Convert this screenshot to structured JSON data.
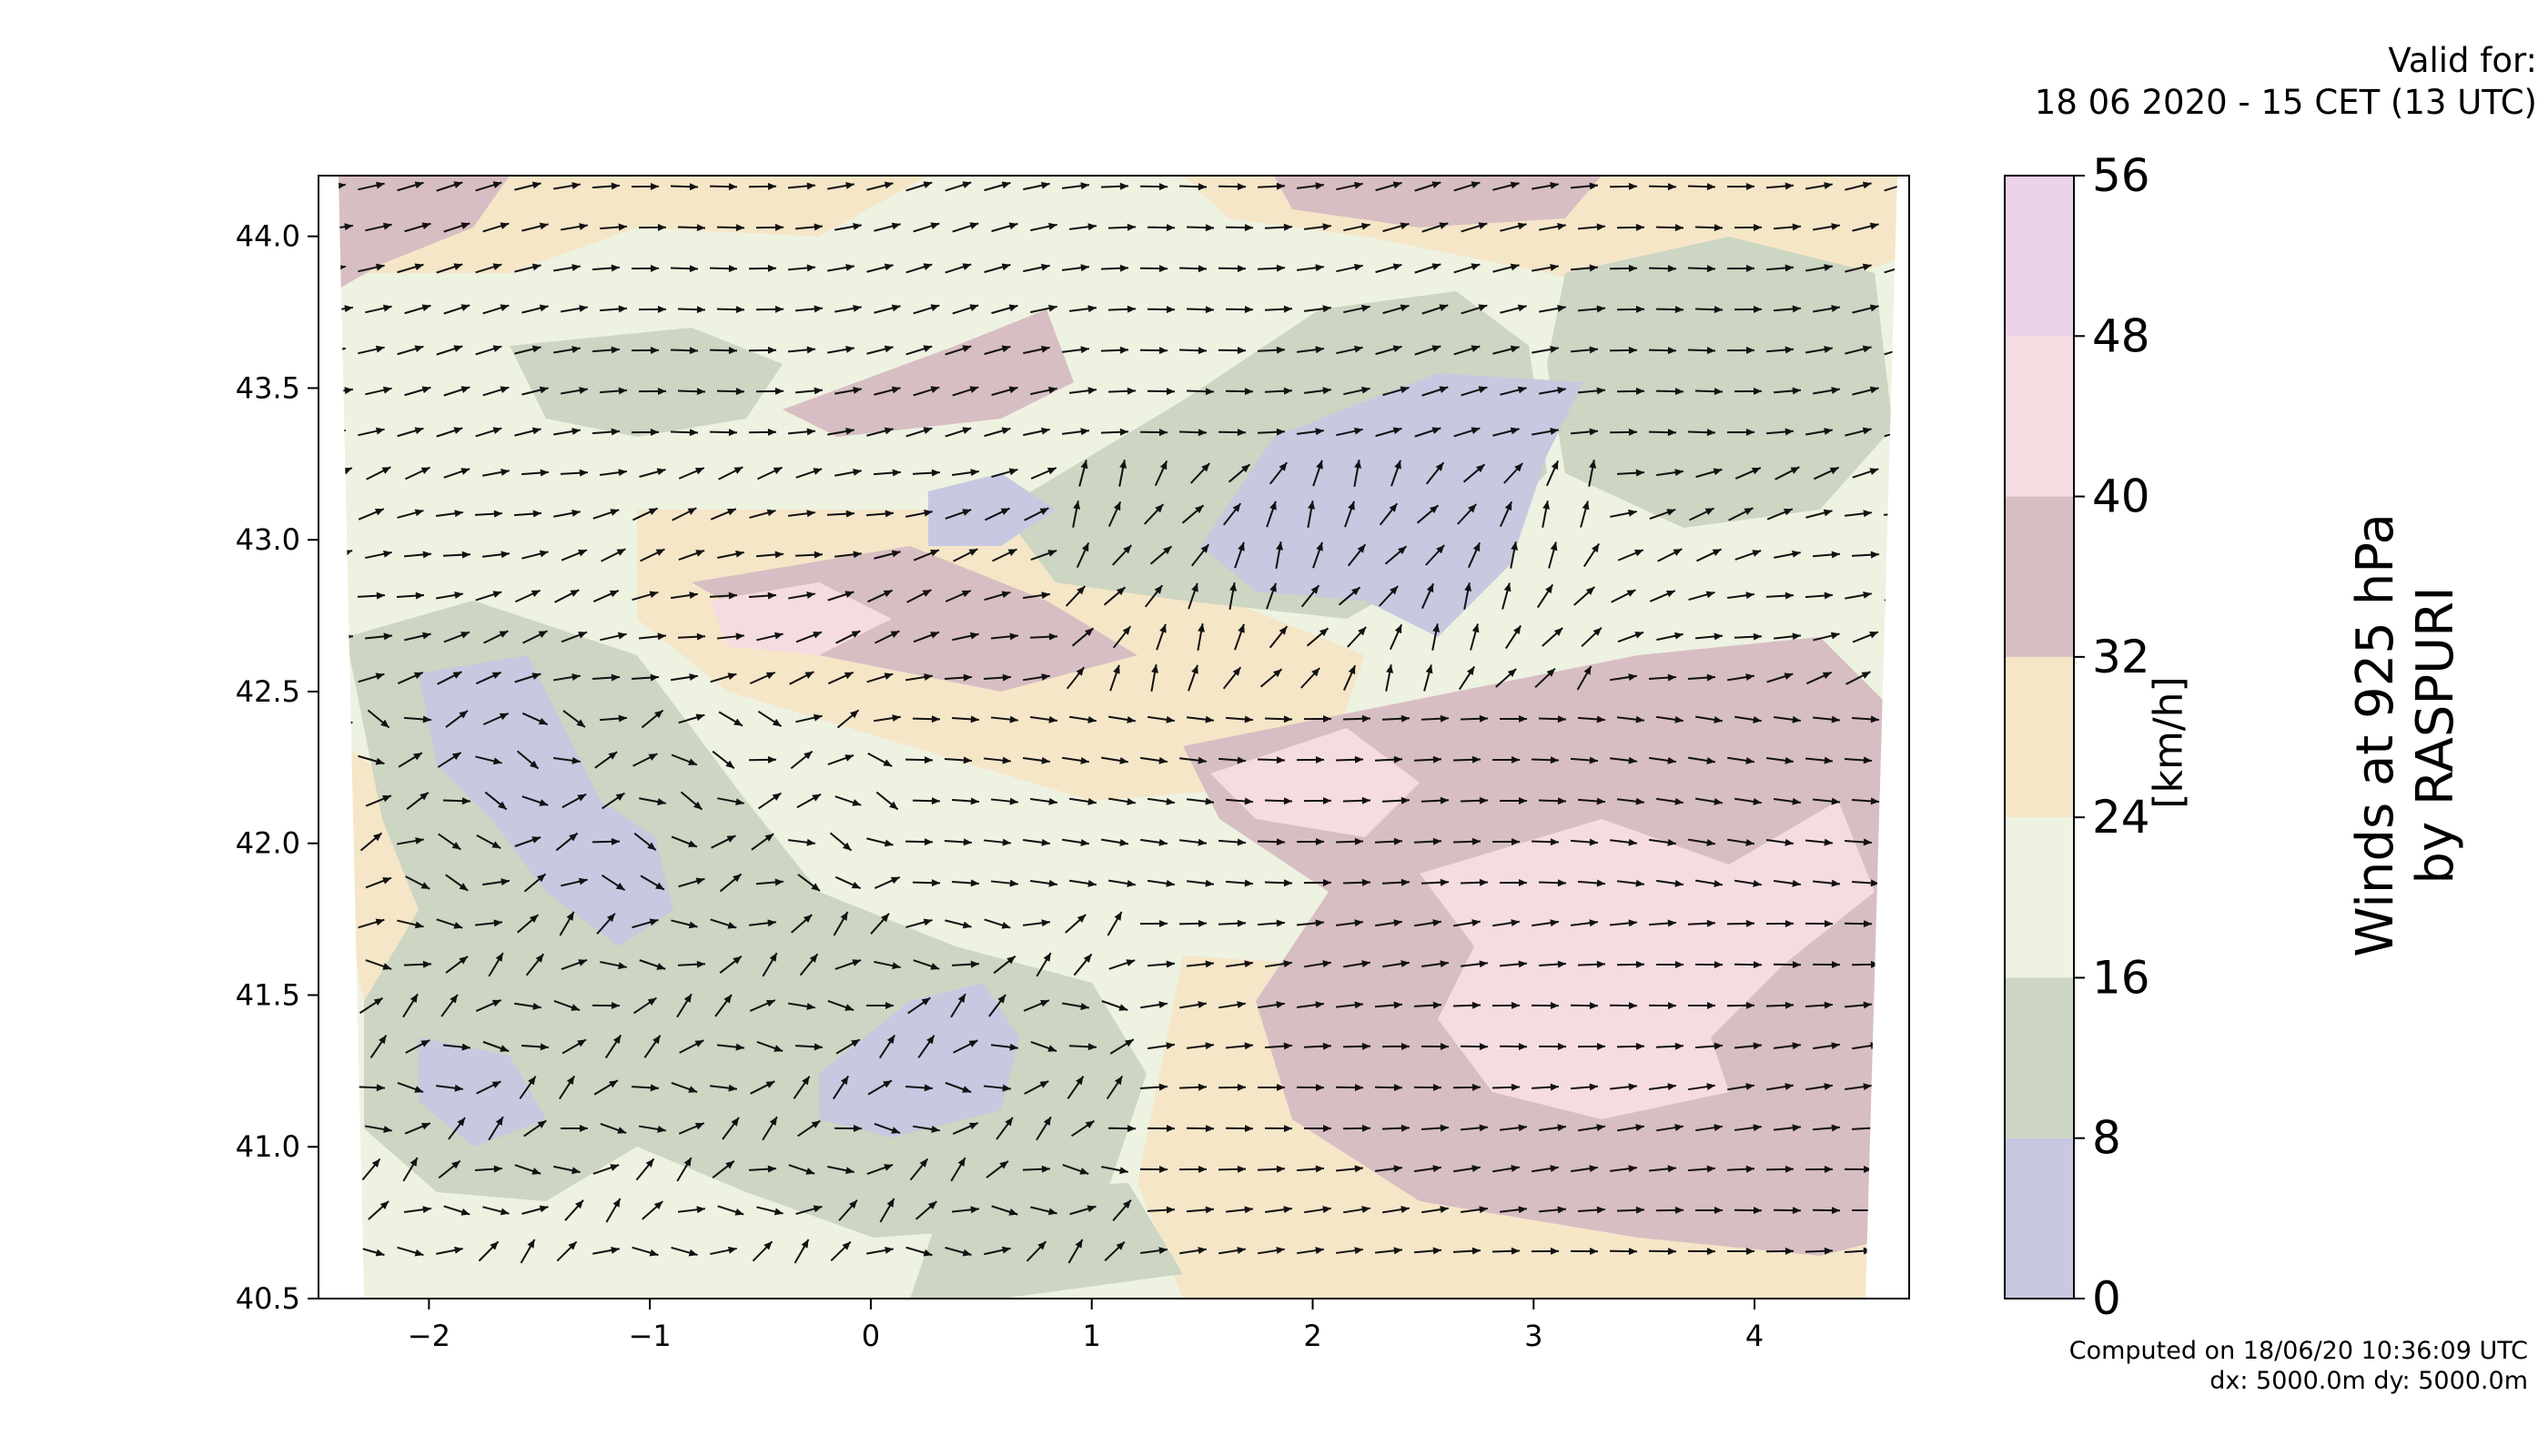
{
  "header": {
    "valid_label": "Valid for:",
    "valid_time": "18 06 2020 - 15 CET (13 UTC)"
  },
  "footer": {
    "computed": "Computed on 18/06/20 10:36:09 UTC",
    "resolution": "dx: 5000.0m dy: 5000.0m"
  },
  "colorbar": {
    "units_label": "[km/h]",
    "title_line1": "Winds at 925 hPa",
    "title_line2": "by RASPURI",
    "levels": [
      0,
      8,
      16,
      24,
      32,
      40,
      48,
      56
    ],
    "colors": [
      "#c8c8e1",
      "#cdd5c3",
      "#eef2e1",
      "#f5e6c8",
      "#d7bec3",
      "#f5dce1",
      "#ebd2eb"
    ]
  },
  "chart_data": {
    "type": "contourf",
    "title": "Winds at 925 hPa by RASPURI",
    "xlabel": "",
    "ylabel": "",
    "xlim": [
      -2.5,
      4.7
    ],
    "ylim": [
      40.5,
      44.2
    ],
    "x_ticks": [
      -2,
      -1,
      0,
      1,
      2,
      3,
      4
    ],
    "x_tick_labels": [
      "−2",
      "−1",
      "0",
      "1",
      "2",
      "3",
      "4"
    ],
    "y_ticks": [
      40.5,
      41.0,
      41.5,
      42.0,
      42.5,
      43.0,
      43.5,
      44.0
    ],
    "y_tick_labels": [
      "40.5",
      "41.0",
      "41.5",
      "42.0",
      "42.5",
      "43.0",
      "43.5",
      "44.0"
    ],
    "overlay": "wind vectors (arrows)",
    "regions": [
      {
        "name": "high wind east",
        "x": 3.2,
        "y": 41.7,
        "speed": 38
      },
      {
        "name": "peak wind southeast",
        "x": 3.0,
        "y": 41.5,
        "speed": 42
      },
      {
        "name": "calm north-central",
        "x": 2.3,
        "y": 43.1,
        "speed": 6
      },
      {
        "name": "calm west",
        "x": -1.6,
        "y": 42.2,
        "speed": 6
      },
      {
        "name": "calm south-central",
        "x": 0.3,
        "y": 41.2,
        "speed": 6
      },
      {
        "name": "moderate north",
        "x": 0.6,
        "y": 43.6,
        "speed": 34
      },
      {
        "name": "moderate northwest",
        "x": -2.2,
        "y": 44.0,
        "speed": 33
      },
      {
        "name": "moderate northeast",
        "x": 2.6,
        "y": 44.1,
        "speed": 34
      }
    ]
  }
}
